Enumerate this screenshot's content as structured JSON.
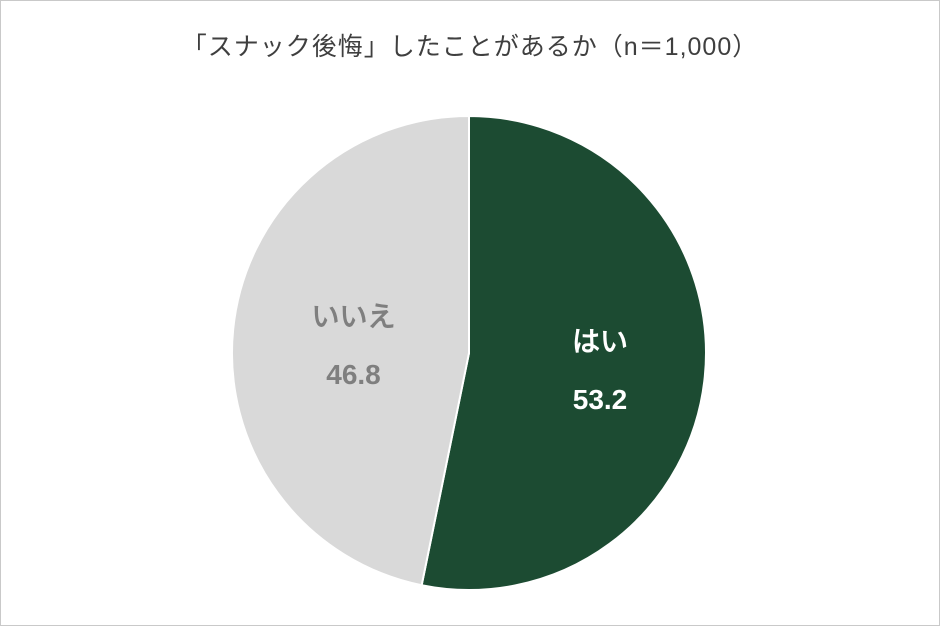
{
  "chart_data": {
    "type": "pie",
    "title": "「スナック後悔」したことがあるか（n＝1,000）",
    "n": "1,000",
    "labels": [
      "はい",
      "いいえ"
    ],
    "values": [
      53.2,
      46.8
    ],
    "value_labels": [
      "53.2",
      "46.8"
    ],
    "colors": [
      "#1c4b32",
      "#d9d9d9"
    ],
    "label_text_colors": [
      "#ffffff",
      "#7f7f7f"
    ],
    "start_angle_deg": 0,
    "direction": "clockwise",
    "legend_position": "none",
    "slice_border_color": "#ffffff"
  }
}
